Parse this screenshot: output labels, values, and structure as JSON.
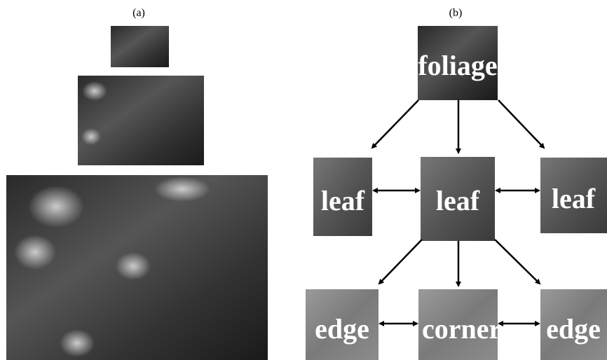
{
  "panels": [
    "(a)",
    "(b)"
  ],
  "nodes": [
    {
      "label": "foliage"
    },
    {
      "label": "leaf"
    },
    {
      "label": "leaf"
    },
    {
      "label": "leaf"
    },
    {
      "label": "edge"
    },
    {
      "label": "corner"
    },
    {
      "label": "edge"
    }
  ]
}
